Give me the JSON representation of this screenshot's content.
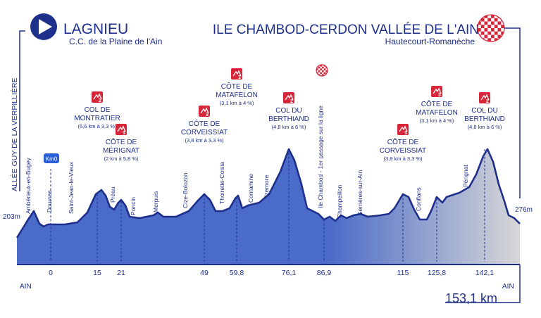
{
  "start": {
    "city": "LAGNIEU",
    "sub": "C.C. de la Plaine de l'Ain"
  },
  "finish": {
    "city": "ILE CHAMBOD-CERDON VALLÉE DE L'AIN",
    "sub": "Hautecourt-Romanèche"
  },
  "start_side_label": "ALLÉE GUY DE LA VERPILLIÈRE",
  "start_altitude": "203m",
  "finish_altitude": "276m",
  "km0_badge": "Km0",
  "dept_left": "AIN",
  "dept_right": "AIN",
  "total_distance": "153,1 km",
  "colors": {
    "navy": "#1e2f8c",
    "profile_blue": "#4a6bc7",
    "profile_grey": "#d7d7d7",
    "climb_red": "#d6263a",
    "km0_blue": "#2a5fd6"
  },
  "places": [
    "Ambérieux-en-Bugey",
    "Douvres",
    "Saint-Jean-le-Vieux",
    "Préau",
    "Poncin",
    "Merpuis",
    "Cize-Bolozon",
    "Thoirette-Coisia",
    "Contamine",
    "Izernore",
    "Ile Chambod - 1er passage sur la ligne",
    "Champeillon",
    "Serrières-sur-Ain",
    "Conflans",
    "Pérignat"
  ],
  "km_marks": [
    "0",
    "15",
    "21",
    "49",
    "59,8",
    "76,1",
    "86,9",
    "115",
    "125,8",
    "142,1"
  ],
  "climbs": [
    {
      "cat": "2",
      "name1": "COL DE",
      "name2": "MONTRATIER",
      "detail": "(6,6 km à 3,3 %)"
    },
    {
      "cat": "3",
      "name1": "CÔTE DE",
      "name2": "MÉRIGNAT",
      "detail": "(2 km à 5,8 %)"
    },
    {
      "cat": "3",
      "name1": "CÔTE DE",
      "name2": "CORVEISSIAT",
      "detail": "(3,8 km à 3,3 %)"
    },
    {
      "cat": "3",
      "name1": "CÔTE DE",
      "name2": "MATAFELON",
      "detail": "(3,1 km à 4 %)"
    },
    {
      "cat": "2",
      "name1": "COL DU",
      "name2": "BERTHIAND",
      "detail": "(4,8 km à 6 %)"
    },
    {
      "cat": "3",
      "name1": "CÔTE DE",
      "name2": "CORVEISSIAT",
      "detail": "(3,8 km à 3,3 %)"
    },
    {
      "cat": "3",
      "name1": "CÔTE DE",
      "name2": "MATAFELON",
      "detail": "(3,1 km à 4 %)"
    },
    {
      "cat": "2",
      "name1": "COL DU",
      "name2": "BERTHIAND",
      "detail": "(4,8 km à 6 %)"
    }
  ]
}
